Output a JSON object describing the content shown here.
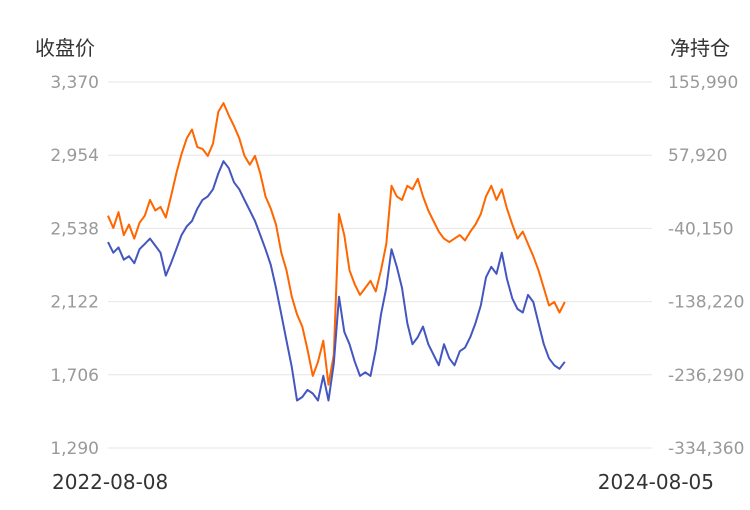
{
  "chart_data": {
    "type": "line",
    "y_left_label": "收盘价",
    "y_right_label": "净持仓",
    "x_start_label": "2022-08-08",
    "x_end_label": "2024-08-05",
    "x_range": [
      "2022-08-08",
      "2024-08-05"
    ],
    "y_left_ticks": [
      "3,370",
      "2,954",
      "2,538",
      "2,122",
      "1,706",
      "1,290"
    ],
    "y_right_ticks": [
      "155,990",
      "57,920",
      "-40,150",
      "-138,220",
      "-236,290",
      "-334,360"
    ],
    "y_left_range": [
      1290,
      3370
    ],
    "y_right_range": [
      -334360,
      155990
    ],
    "grid": true,
    "series": [
      {
        "axis": "left",
        "color": "#ff6600",
        "points": [
          [
            "2022-08-08",
            2610
          ],
          [
            "2022-08-15",
            2540
          ],
          [
            "2022-08-22",
            2630
          ],
          [
            "2022-08-29",
            2500
          ],
          [
            "2022-09-05",
            2560
          ],
          [
            "2022-09-12",
            2480
          ],
          [
            "2022-09-19",
            2570
          ],
          [
            "2022-09-26",
            2610
          ],
          [
            "2022-10-03",
            2700
          ],
          [
            "2022-10-10",
            2640
          ],
          [
            "2022-10-17",
            2660
          ],
          [
            "2022-10-24",
            2600
          ],
          [
            "2022-10-31",
            2720
          ],
          [
            "2022-11-07",
            2850
          ],
          [
            "2022-11-14",
            2960
          ],
          [
            "2022-11-21",
            3050
          ],
          [
            "2022-11-28",
            3100
          ],
          [
            "2022-12-05",
            3000
          ],
          [
            "2022-12-12",
            2990
          ],
          [
            "2022-12-19",
            2950
          ],
          [
            "2022-12-26",
            3020
          ],
          [
            "2023-01-02",
            3200
          ],
          [
            "2023-01-09",
            3250
          ],
          [
            "2023-01-16",
            3180
          ],
          [
            "2023-01-23",
            3120
          ],
          [
            "2023-01-30",
            3050
          ],
          [
            "2023-02-06",
            2950
          ],
          [
            "2023-02-13",
            2900
          ],
          [
            "2023-02-20",
            2950
          ],
          [
            "2023-02-27",
            2850
          ],
          [
            "2023-03-06",
            2720
          ],
          [
            "2023-03-13",
            2650
          ],
          [
            "2023-03-20",
            2560
          ],
          [
            "2023-03-27",
            2400
          ],
          [
            "2023-04-03",
            2300
          ],
          [
            "2023-04-10",
            2150
          ],
          [
            "2023-04-17",
            2050
          ],
          [
            "2023-04-24",
            1980
          ],
          [
            "2023-05-01",
            1850
          ],
          [
            "2023-05-08",
            1700
          ],
          [
            "2023-05-15",
            1780
          ],
          [
            "2023-05-22",
            1900
          ],
          [
            "2023-05-29",
            1650
          ],
          [
            "2023-06-05",
            1820
          ],
          [
            "2023-06-12",
            2620
          ],
          [
            "2023-06-19",
            2500
          ],
          [
            "2023-06-26",
            2300
          ],
          [
            "2023-07-03",
            2220
          ],
          [
            "2023-07-10",
            2160
          ],
          [
            "2023-07-17",
            2200
          ],
          [
            "2023-07-24",
            2240
          ],
          [
            "2023-07-31",
            2180
          ],
          [
            "2023-08-07",
            2300
          ],
          [
            "2023-08-14",
            2450
          ],
          [
            "2023-08-21",
            2780
          ],
          [
            "2023-08-28",
            2720
          ],
          [
            "2023-09-04",
            2700
          ],
          [
            "2023-09-11",
            2780
          ],
          [
            "2023-09-18",
            2760
          ],
          [
            "2023-09-25",
            2820
          ],
          [
            "2023-10-02",
            2720
          ],
          [
            "2023-10-09",
            2640
          ],
          [
            "2023-10-16",
            2580
          ],
          [
            "2023-10-23",
            2520
          ],
          [
            "2023-10-30",
            2480
          ],
          [
            "2023-11-06",
            2460
          ],
          [
            "2023-11-13",
            2480
          ],
          [
            "2023-11-20",
            2500
          ],
          [
            "2023-11-27",
            2470
          ],
          [
            "2023-12-04",
            2520
          ],
          [
            "2023-12-11",
            2560
          ],
          [
            "2023-12-18",
            2620
          ],
          [
            "2023-12-25",
            2720
          ],
          [
            "2024-01-01",
            2780
          ],
          [
            "2024-01-08",
            2700
          ],
          [
            "2024-01-15",
            2760
          ],
          [
            "2024-01-22",
            2650
          ],
          [
            "2024-01-29",
            2560
          ],
          [
            "2024-02-05",
            2480
          ],
          [
            "2024-02-12",
            2520
          ],
          [
            "2024-02-19",
            2450
          ],
          [
            "2024-02-26",
            2380
          ],
          [
            "2024-03-04",
            2300
          ],
          [
            "2024-03-11",
            2200
          ],
          [
            "2024-03-18",
            2100
          ],
          [
            "2024-03-25",
            2120
          ],
          [
            "2024-04-01",
            2060
          ],
          [
            "2024-04-08",
            2120
          ]
        ]
      },
      {
        "axis": "left",
        "color": "#4456c0",
        "points": [
          [
            "2022-08-08",
            2460
          ],
          [
            "2022-08-15",
            2400
          ],
          [
            "2022-08-22",
            2430
          ],
          [
            "2022-08-29",
            2360
          ],
          [
            "2022-09-05",
            2380
          ],
          [
            "2022-09-12",
            2340
          ],
          [
            "2022-09-19",
            2420
          ],
          [
            "2022-09-26",
            2450
          ],
          [
            "2022-10-03",
            2480
          ],
          [
            "2022-10-10",
            2440
          ],
          [
            "2022-10-17",
            2400
          ],
          [
            "2022-10-24",
            2270
          ],
          [
            "2022-10-31",
            2340
          ],
          [
            "2022-11-07",
            2420
          ],
          [
            "2022-11-14",
            2500
          ],
          [
            "2022-11-21",
            2550
          ],
          [
            "2022-11-28",
            2580
          ],
          [
            "2022-12-05",
            2650
          ],
          [
            "2022-12-12",
            2700
          ],
          [
            "2022-12-19",
            2720
          ],
          [
            "2022-12-26",
            2760
          ],
          [
            "2023-01-02",
            2850
          ],
          [
            "2023-01-09",
            2920
          ],
          [
            "2023-01-16",
            2880
          ],
          [
            "2023-01-23",
            2800
          ],
          [
            "2023-01-30",
            2760
          ],
          [
            "2023-02-06",
            2700
          ],
          [
            "2023-02-13",
            2640
          ],
          [
            "2023-02-20",
            2580
          ],
          [
            "2023-02-27",
            2500
          ],
          [
            "2023-03-06",
            2420
          ],
          [
            "2023-03-13",
            2330
          ],
          [
            "2023-03-20",
            2200
          ],
          [
            "2023-03-27",
            2050
          ],
          [
            "2023-04-03",
            1900
          ],
          [
            "2023-04-10",
            1750
          ],
          [
            "2023-04-17",
            1560
          ],
          [
            "2023-04-24",
            1580
          ],
          [
            "2023-05-01",
            1620
          ],
          [
            "2023-05-08",
            1600
          ],
          [
            "2023-05-15",
            1560
          ],
          [
            "2023-05-22",
            1700
          ],
          [
            "2023-05-29",
            1560
          ],
          [
            "2023-06-05",
            1770
          ],
          [
            "2023-06-12",
            2150
          ],
          [
            "2023-06-19",
            1950
          ],
          [
            "2023-06-26",
            1880
          ],
          [
            "2023-07-03",
            1780
          ],
          [
            "2023-07-10",
            1700
          ],
          [
            "2023-07-17",
            1720
          ],
          [
            "2023-07-24",
            1700
          ],
          [
            "2023-07-31",
            1850
          ],
          [
            "2023-08-07",
            2050
          ],
          [
            "2023-08-14",
            2200
          ],
          [
            "2023-08-21",
            2420
          ],
          [
            "2023-08-28",
            2320
          ],
          [
            "2023-09-04",
            2200
          ],
          [
            "2023-09-11",
            2000
          ],
          [
            "2023-09-18",
            1880
          ],
          [
            "2023-09-25",
            1920
          ],
          [
            "2023-10-02",
            1980
          ],
          [
            "2023-10-09",
            1880
          ],
          [
            "2023-10-16",
            1820
          ],
          [
            "2023-10-23",
            1760
          ],
          [
            "2023-10-30",
            1880
          ],
          [
            "2023-11-06",
            1800
          ],
          [
            "2023-11-13",
            1760
          ],
          [
            "2023-11-20",
            1840
          ],
          [
            "2023-11-27",
            1860
          ],
          [
            "2023-12-04",
            1920
          ],
          [
            "2023-12-11",
            2000
          ],
          [
            "2023-12-18",
            2100
          ],
          [
            "2023-12-25",
            2260
          ],
          [
            "2024-01-01",
            2320
          ],
          [
            "2024-01-08",
            2280
          ],
          [
            "2024-01-15",
            2400
          ],
          [
            "2024-01-22",
            2250
          ],
          [
            "2024-01-29",
            2140
          ],
          [
            "2024-02-05",
            2080
          ],
          [
            "2024-02-12",
            2060
          ],
          [
            "2024-02-19",
            2160
          ],
          [
            "2024-02-26",
            2120
          ],
          [
            "2024-03-04",
            2000
          ],
          [
            "2024-03-11",
            1880
          ],
          [
            "2024-03-18",
            1800
          ],
          [
            "2024-03-25",
            1760
          ],
          [
            "2024-04-01",
            1740
          ],
          [
            "2024-04-08",
            1780
          ]
        ]
      }
    ]
  }
}
